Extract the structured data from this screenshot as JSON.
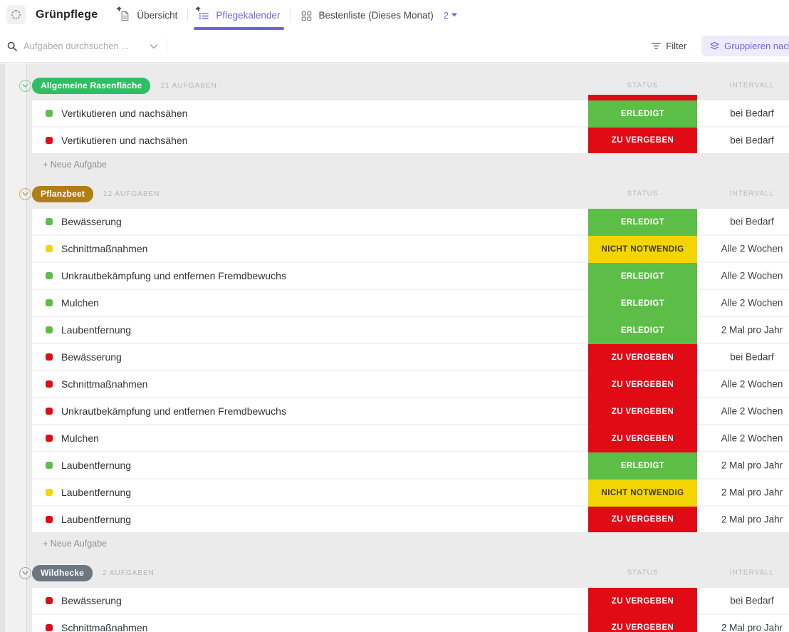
{
  "header": {
    "title": "Grünpflege",
    "tabs": [
      {
        "label": "Übersicht",
        "active": false
      },
      {
        "label": "Pflegekalender",
        "active": true
      },
      {
        "label": "Bestenliste (Dieses Monat)",
        "active": false,
        "badge": "2"
      }
    ]
  },
  "toolbar": {
    "search_placeholder": "Aufgaben durchsuchen ...",
    "filter_label": "Filter",
    "group_by_label": "Gruppieren nach"
  },
  "columns": {
    "status": "STATUS",
    "interval": "INTERVALL"
  },
  "add_task_label": "+ Neue Aufgabe",
  "accent_color": "#6f66e0",
  "status_styles": {
    "done": {
      "bg": "#5cbe46",
      "text": "#ffffff"
    },
    "open": {
      "bg": "#e00b15",
      "text": "#ffffff"
    },
    "not_needed": {
      "bg": "#f3d503",
      "text": "#3e3a05"
    }
  },
  "groups": [
    {
      "name": "Allgemeine Rasenfläche",
      "count_label": "21 AUFGABEN",
      "color": "#2fbf62",
      "overflow_sliver": "open",
      "tasks": [
        {
          "name": "Vertikutieren und nachsähen",
          "status_label": "ERLEDIGT",
          "status_type": "done",
          "interval": "bei Bedarf"
        },
        {
          "name": "Vertikutieren und nachsähen",
          "status_label": "ZU VERGEBEN",
          "status_type": "open",
          "interval": "bei Bedarf"
        }
      ]
    },
    {
      "name": "Pflanzbeet",
      "count_label": "12 AUFGABEN",
      "color": "#b07d16",
      "overflow_sliver": null,
      "tasks": [
        {
          "name": "Bewässerung",
          "status_label": "ERLEDIGT",
          "status_type": "done",
          "interval": "bei Bedarf"
        },
        {
          "name": "Schnittmaßnahmen",
          "status_label": "NICHT NOTWENDIG",
          "status_type": "not_needed",
          "interval": "Alle 2 Wochen"
        },
        {
          "name": "Unkrautbekämpfung und entfernen Fremdbewuchs",
          "status_label": "ERLEDIGT",
          "status_type": "done",
          "interval": "Alle 2 Wochen"
        },
        {
          "name": "Mulchen",
          "status_label": "ERLEDIGT",
          "status_type": "done",
          "interval": "Alle 2 Wochen"
        },
        {
          "name": "Laubentfernung",
          "status_label": "ERLEDIGT",
          "status_type": "done",
          "interval": "2 Mal pro Jahr"
        },
        {
          "name": "Bewässerung",
          "status_label": "ZU VERGEBEN",
          "status_type": "open",
          "interval": "bei Bedarf"
        },
        {
          "name": "Schnittmaßnahmen",
          "status_label": "ZU VERGEBEN",
          "status_type": "open",
          "interval": "Alle 2 Wochen"
        },
        {
          "name": "Unkrautbekämpfung und entfernen Fremdbewuchs",
          "status_label": "ZU VERGEBEN",
          "status_type": "open",
          "interval": "Alle 2 Wochen"
        },
        {
          "name": "Mulchen",
          "status_label": "ZU VERGEBEN",
          "status_type": "open",
          "interval": "Alle 2 Wochen"
        },
        {
          "name": "Laubentfernung",
          "status_label": "ERLEDIGT",
          "status_type": "done",
          "interval": "2 Mal pro Jahr"
        },
        {
          "name": "Laubentfernung",
          "status_label": "NICHT NOTWENDIG",
          "status_type": "not_needed",
          "interval": "2 Mal pro Jahr"
        },
        {
          "name": "Laubentfernung",
          "status_label": "ZU VERGEBEN",
          "status_type": "open",
          "interval": "2 Mal pro Jahr"
        }
      ]
    },
    {
      "name": "Wildhecke",
      "count_label": "2 AUFGABEN",
      "color": "#6c7680",
      "overflow_sliver": null,
      "tasks": [
        {
          "name": "Bewässerung",
          "status_label": "ZU VERGEBEN",
          "status_type": "open",
          "interval": "bei Bedarf"
        },
        {
          "name": "Schnittmaßnahmen",
          "status_label": "ZU VERGEBEN",
          "status_type": "open",
          "interval": "2 Mal pro Jahr"
        }
      ]
    }
  ]
}
